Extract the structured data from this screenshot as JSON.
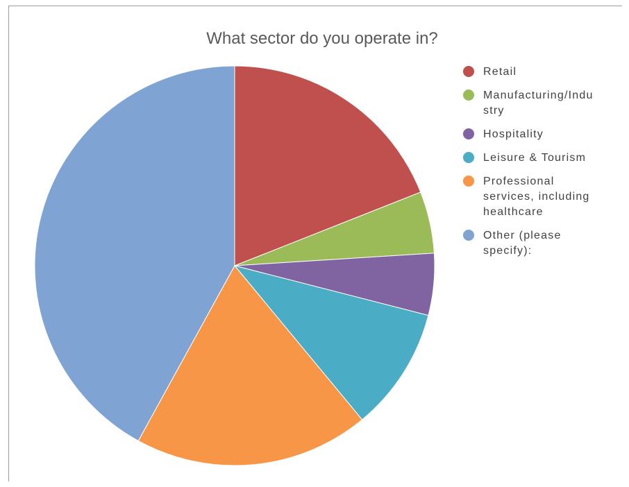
{
  "chart_data": {
    "type": "pie",
    "title": "What sector do you operate in?",
    "categories": [
      "Retail",
      "Manufacturing/Industry",
      "Hospitality",
      "Leisure & Tourism",
      "Professional services, including healthcare",
      "Other (please specify):"
    ],
    "values": [
      19.0,
      5.0,
      5.0,
      10.0,
      19.0,
      42.0
    ],
    "value_unit": "percent of responses (estimated)",
    "colors": [
      "#C0504D",
      "#9BBB59",
      "#8064A2",
      "#4BACC6",
      "#F79646",
      "#7FA3D2"
    ],
    "legend": {
      "position": "right",
      "entries": [
        {
          "lines": [
            "Retail"
          ]
        },
        {
          "lines": [
            "Manufacturing/Indu",
            "stry"
          ]
        },
        {
          "lines": [
            "Hospitality"
          ]
        },
        {
          "lines": [
            "Leisure & Tourism"
          ]
        },
        {
          "lines": [
            "Professional",
            "services, including",
            "healthcare"
          ]
        },
        {
          "lines": [
            "Other (please",
            "specify):"
          ]
        }
      ]
    },
    "start_angle": "12 o'clock",
    "direction": "clockwise"
  }
}
